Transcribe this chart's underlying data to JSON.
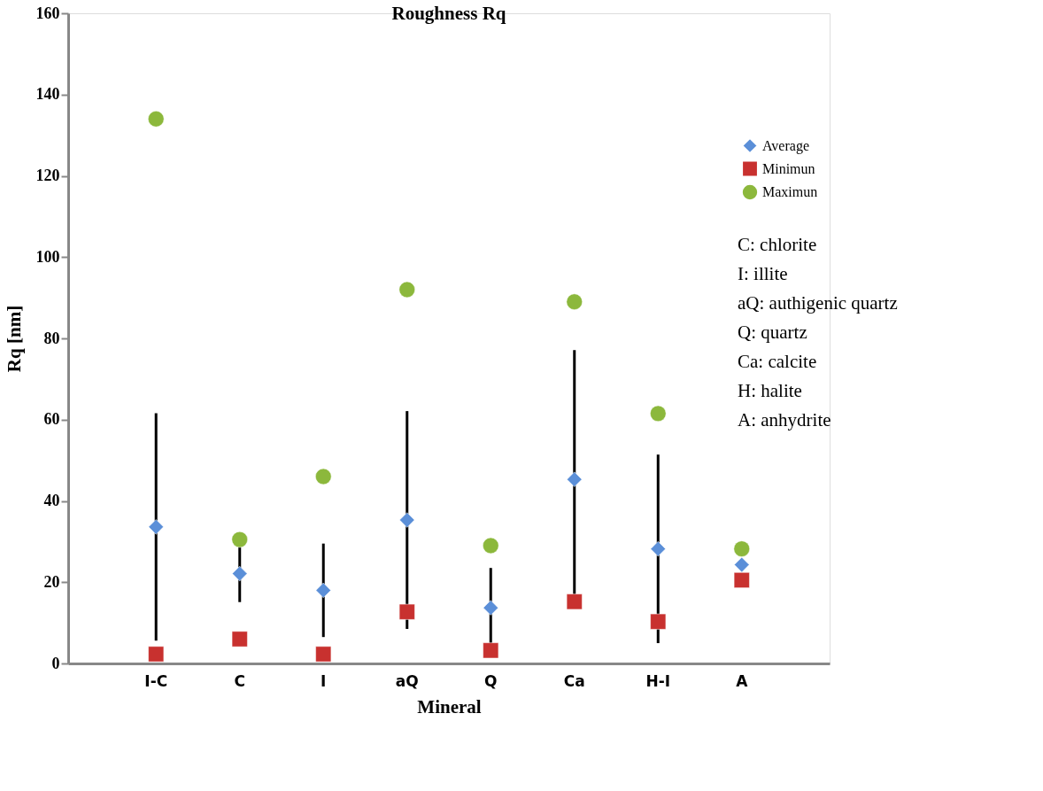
{
  "chart_data": {
    "type": "scatter",
    "title": "Roughness Rq",
    "xlabel": "Mineral",
    "ylabel": "Rq [nm]",
    "categories": [
      "I-C",
      "C",
      "I",
      "aQ",
      "Q",
      "Ca",
      "H-I",
      "A"
    ],
    "series": [
      {
        "name": "Average",
        "color": "#5b8fd8",
        "marker": "diamond",
        "values": [
          33.6,
          22.1,
          18,
          35.3,
          13.7,
          45.3,
          28.2,
          24.3
        ],
        "errors": [
          28,
          7,
          11.5,
          26.8,
          9.8,
          31.8,
          23.2,
          null
        ]
      },
      {
        "name": "Minimun",
        "color": "#c8312f",
        "marker": "square",
        "values": [
          2.3,
          6,
          2.3,
          12.7,
          3.2,
          15.2,
          10.3,
          20.5
        ]
      },
      {
        "name": "Maximun",
        "color": "#8cb83c",
        "marker": "circle",
        "values": [
          134,
          30.5,
          46,
          92,
          29,
          89,
          61.5,
          28.2
        ]
      }
    ],
    "annotations": [
      "C: chlorite",
      "I: illite",
      "aQ: authigenic quartz",
      "Q: quartz",
      "Ca: calcite",
      "H: halite",
      "A: anhydrite"
    ],
    "ylim": [
      0,
      160
    ],
    "yticks": [
      0,
      20,
      40,
      60,
      80,
      100,
      120,
      140,
      160
    ],
    "grid": false,
    "legend": "right"
  }
}
